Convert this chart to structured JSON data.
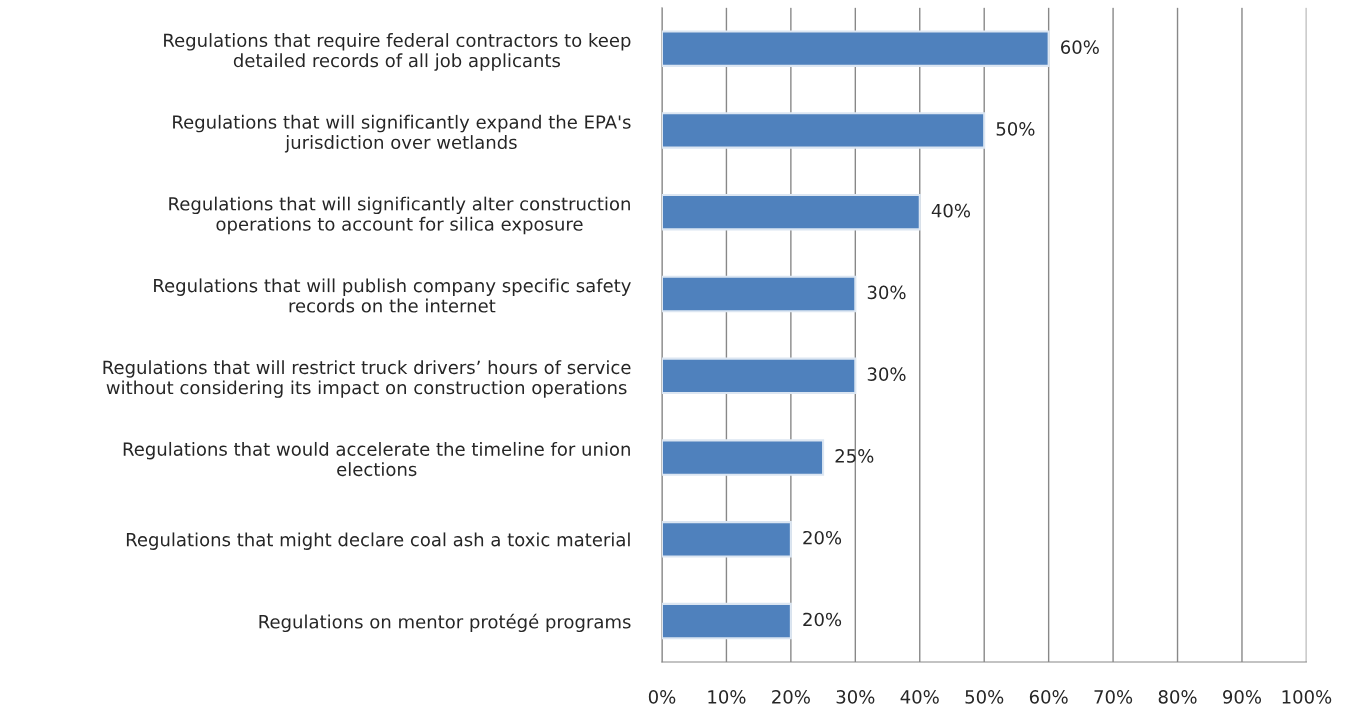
{
  "chart_data": {
    "type": "bar",
    "orientation": "horizontal",
    "categories": [
      "Regulations that require federal contractors to keep\ndetailed records of all job applicants",
      "Regulations that will significantly expand the EPA's\njurisdiction over wetlands",
      "Regulations that will significantly alter construction\noperations to account for silica exposure",
      "Regulations that will publish company specific safety\nrecords on the internet",
      "Regulations that will restrict truck drivers’ hours of service\nwithout considering its impact on construction operations",
      "Regulations that would accelerate the timeline for union\nelections",
      "Regulations that might declare coal ash a toxic material",
      "Regulations on mentor protégé programs"
    ],
    "values": [
      60,
      50,
      40,
      30,
      30,
      25,
      20,
      20
    ],
    "value_labels": [
      "60%",
      "50%",
      "40%",
      "30%",
      "30%",
      "25%",
      "20%",
      "20%"
    ],
    "color": "#4f81bd",
    "xlim": [
      0,
      100
    ],
    "xticks": [
      {
        "value": 0,
        "label": "0%"
      },
      {
        "value": 10,
        "label": "10%"
      },
      {
        "value": 20,
        "label": "20%"
      },
      {
        "value": 30,
        "label": "30%"
      },
      {
        "value": 40,
        "label": "40%"
      },
      {
        "value": 50,
        "label": "50%"
      },
      {
        "value": 60,
        "label": "60%"
      },
      {
        "value": 70,
        "label": "70%"
      },
      {
        "value": 80,
        "label": "80%"
      },
      {
        "value": 90,
        "label": "90%"
      },
      {
        "value": 100,
        "label": "100%"
      }
    ],
    "grid": "x",
    "legend": false
  }
}
